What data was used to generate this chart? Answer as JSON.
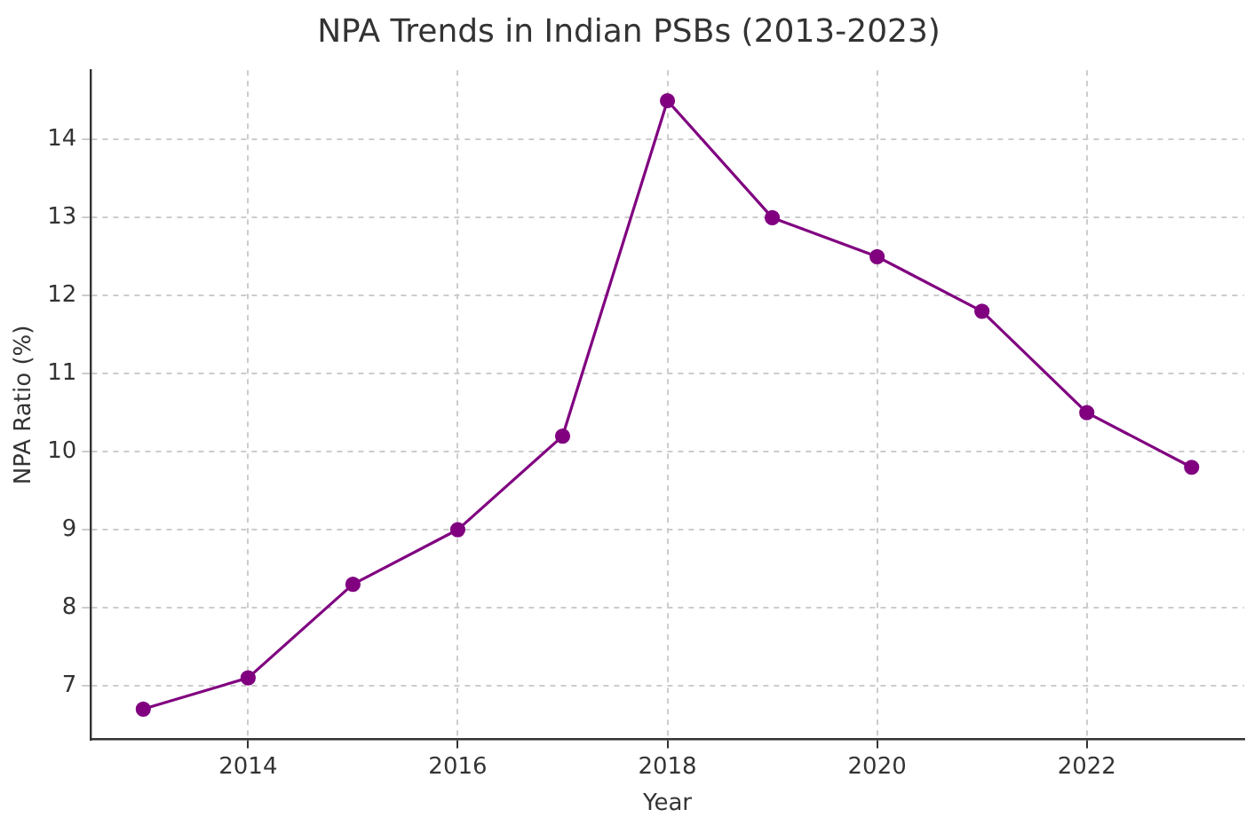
{
  "chart_data": {
    "type": "line",
    "title": "NPA Trends in Indian PSBs (2013-2023)",
    "xlabel": "Year",
    "ylabel": "NPA Ratio (%)",
    "x": [
      2013,
      2014,
      2015,
      2016,
      2017,
      2018,
      2019,
      2020,
      2021,
      2022,
      2023
    ],
    "series": [
      {
        "color": "#800080",
        "values": [
          6.7,
          7.1,
          8.3,
          9.0,
          10.2,
          14.5,
          13.0,
          12.5,
          11.8,
          10.5,
          9.8
        ]
      }
    ],
    "xlim": [
      2012.5,
      2023.5
    ],
    "xticks": [
      2014,
      2016,
      2018,
      2020,
      2022
    ],
    "ylim": [
      6.31,
      14.89
    ],
    "yticks": [
      7,
      8,
      9,
      10,
      11,
      12,
      13,
      14
    ],
    "grid": true,
    "marker": "circle",
    "line_style": "solid",
    "legend": false
  }
}
